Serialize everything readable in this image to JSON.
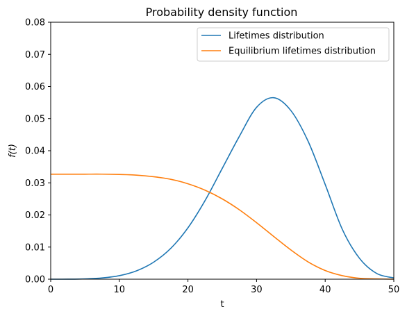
{
  "chart_data": {
    "type": "line",
    "title": "Probability density function",
    "xlabel": "t",
    "ylabel": "f(t)",
    "xlim": [
      0,
      50
    ],
    "ylim": [
      0,
      0.08
    ],
    "xticks": [
      0,
      10,
      20,
      30,
      40,
      50
    ],
    "xtick_labels": [
      "0",
      "10",
      "20",
      "30",
      "40",
      "50"
    ],
    "yticks": [
      0.0,
      0.01,
      0.02,
      0.03,
      0.04,
      0.05,
      0.06,
      0.07,
      0.08
    ],
    "ytick_labels": [
      "0.00",
      "0.01",
      "0.02",
      "0.03",
      "0.04",
      "0.05",
      "0.06",
      "0.07",
      "0.08"
    ],
    "grid": false,
    "legend_position": "top-right",
    "x": [
      0,
      2.5,
      5,
      7.5,
      10,
      12.5,
      15,
      17.5,
      20,
      22.5,
      25,
      27.5,
      30,
      32.5,
      35,
      37.5,
      40,
      42.5,
      45,
      47.5,
      50
    ],
    "series": [
      {
        "name": "Lifetimes distribution",
        "color": "#1f77b4",
        "values": [
          0.0,
          1e-05,
          0.0001,
          0.0004,
          0.0011,
          0.0026,
          0.0053,
          0.0096,
          0.016,
          0.0245,
          0.0345,
          0.0445,
          0.0535,
          0.0565,
          0.0525,
          0.043,
          0.0295,
          0.0155,
          0.0065,
          0.0018,
          0.0004
        ]
      },
      {
        "name": "Equilibrium lifetimes distribution",
        "color": "#ff7f0e",
        "values": [
          0.0327,
          0.0327,
          0.0327,
          0.0327,
          0.0326,
          0.0324,
          0.0319,
          0.0311,
          0.0297,
          0.0277,
          0.025,
          0.0216,
          0.0176,
          0.0133,
          0.0091,
          0.0054,
          0.0027,
          0.0011,
          0.0003,
          0.0001,
          0.0
        ]
      }
    ]
  }
}
